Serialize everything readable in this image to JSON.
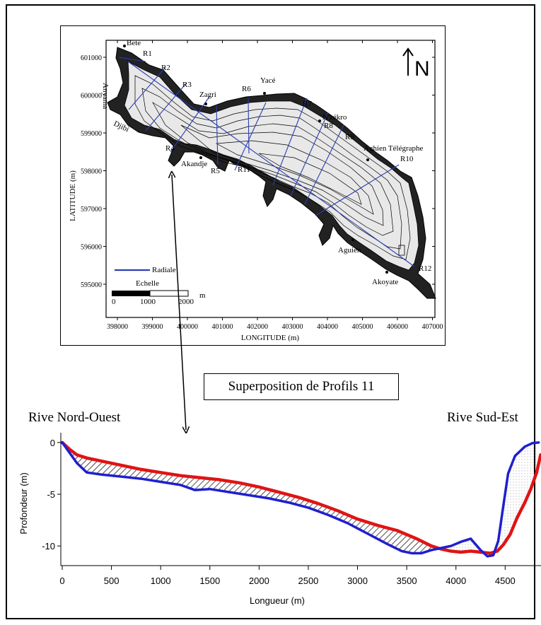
{
  "map": {
    "north_label": "N",
    "ylabel": "LATITUDE (m)",
    "xlabel": "LONGITUDE (m)",
    "yticks": [
      "601000",
      "600000",
      "599000",
      "598000",
      "597000",
      "596000",
      "595000"
    ],
    "xticks": [
      "398000",
      "399000",
      "400000",
      "401000",
      "402000",
      "403000",
      "404000",
      "405000",
      "406000",
      "407000"
    ],
    "place_names": [
      "Bete",
      "Zagri",
      "Yacé",
      "N'zékro",
      "Aghien Télégraphe",
      "Akandje",
      "Aguien",
      "Akoyate",
      "Anyama",
      "Djibi"
    ],
    "radial_labels": [
      "R1",
      "R2",
      "R3",
      "R4",
      "R5",
      "R6",
      "R7",
      "R8",
      "R9",
      "R10",
      "R11",
      "R12"
    ],
    "legend_label": "Radiale",
    "scale_title": "Echelle",
    "scale_ticks": [
      "0",
      "1000",
      "2000"
    ],
    "scale_unit": "m",
    "colors": {
      "radial": "#2b3fb3",
      "contour": "#111111"
    }
  },
  "caption": "Superposition de Profils 11",
  "bank_left": "Rive Nord-Ouest",
  "bank_right": "Rive Sud-Est",
  "chart_data": {
    "type": "line",
    "xlabel": "Longueur (m)",
    "ylabel": "Profondeur (m)",
    "xlim": [
      0,
      4900
    ],
    "ylim": [
      -11.9,
      0.4
    ],
    "xticks": [
      0,
      500,
      1000,
      1500,
      2000,
      2500,
      3000,
      3500,
      4000,
      4500
    ],
    "yticks": [
      0,
      -5,
      -10
    ],
    "grid": false,
    "series": [
      {
        "color": "#1f1fd0",
        "x": [
          0,
          60,
          150,
          250,
          400,
          600,
          800,
          1000,
          1200,
          1350,
          1500,
          1700,
          1900,
          2100,
          2300,
          2500,
          2700,
          2900,
          3100,
          3300,
          3450,
          3550,
          3650,
          3750,
          3850,
          3950,
          4050,
          4150,
          4250,
          4320,
          4380,
          4430,
          4480,
          4530,
          4600,
          4700,
          4780,
          4840
        ],
        "values": [
          0,
          -0.8,
          -2.0,
          -2.9,
          -3.1,
          -3.3,
          -3.5,
          -3.8,
          -4.1,
          -4.6,
          -4.5,
          -4.8,
          -5.1,
          -5.4,
          -5.8,
          -6.3,
          -7.0,
          -7.8,
          -8.8,
          -9.8,
          -10.5,
          -10.7,
          -10.7,
          -10.4,
          -10.2,
          -10.0,
          -9.6,
          -9.3,
          -10.4,
          -11.0,
          -10.9,
          -9.5,
          -6.2,
          -3.0,
          -1.3,
          -0.4,
          -0.05,
          0
        ]
      },
      {
        "color": "#e01414",
        "x": [
          0,
          80,
          150,
          250,
          400,
          600,
          800,
          1000,
          1200,
          1400,
          1600,
          1800,
          2000,
          2200,
          2400,
          2600,
          2800,
          3000,
          3200,
          3400,
          3600,
          3750,
          3850,
          3950,
          4050,
          4150,
          4250,
          4350,
          4420,
          4480,
          4550,
          4620,
          4700,
          4760,
          4820,
          4860
        ],
        "values": [
          0,
          -0.7,
          -1.2,
          -1.5,
          -1.8,
          -2.2,
          -2.6,
          -2.9,
          -3.2,
          -3.4,
          -3.6,
          -3.9,
          -4.3,
          -4.8,
          -5.3,
          -5.9,
          -6.6,
          -7.4,
          -8.0,
          -8.5,
          -9.3,
          -10.0,
          -10.3,
          -10.5,
          -10.6,
          -10.5,
          -10.6,
          -10.7,
          -10.5,
          -9.9,
          -8.9,
          -7.3,
          -5.8,
          -4.5,
          -2.9,
          -1.2
        ]
      }
    ]
  }
}
